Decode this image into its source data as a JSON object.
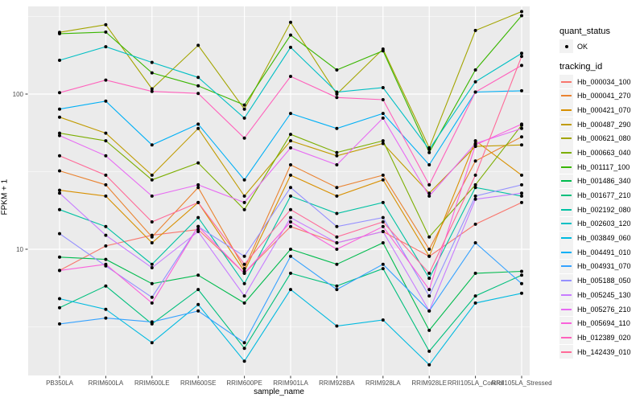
{
  "chart_data": {
    "type": "line",
    "title": "",
    "xlabel": "sample_name",
    "ylabel": "FPKM + 1",
    "yscale": "log10",
    "yticks": [
      10,
      100
    ],
    "ylim": [
      1.6,
      380
    ],
    "grid": true,
    "legend_position": "right",
    "panel_bg": "#EBEBEB",
    "grid_color": "#FFFFFF",
    "point_color": "#000000",
    "tick_label_color": "#4D4D4D",
    "categories": [
      "PB350LA",
      "RRIM600LA",
      "RRIM600LE",
      "RRIM600SE",
      "RRIM600PE",
      "RRIM901LA",
      "RRIM928BA",
      "RRIM928LA",
      "RRIM928LE",
      "RRII105LA_Control",
      "RRII105LA_Stressed"
    ],
    "series": [
      {
        "name": "Hb_000034_100",
        "color": "#F8766D",
        "values": [
          7.3,
          10.5,
          12.3,
          13.4,
          7.0,
          14.0,
          11.0,
          13.0,
          9.0,
          14.5,
          20.0
        ]
      },
      {
        "name": "Hb_000041_270",
        "color": "#EA8331",
        "values": [
          32,
          26,
          12,
          25,
          7.5,
          35,
          25,
          30,
          10,
          37,
          53
        ]
      },
      {
        "name": "Hb_000421_070",
        "color": "#D89000",
        "values": [
          24,
          22,
          11,
          20,
          7.2,
          30,
          22,
          28,
          9,
          50,
          30
        ]
      },
      {
        "name": "Hb_000487_290",
        "color": "#C09B00",
        "values": [
          71,
          56,
          30,
          60,
          22,
          50,
          40,
          48,
          23,
          46,
          47
        ]
      },
      {
        "name": "Hb_000621_080",
        "color": "#A3A500",
        "values": [
          250,
          280,
          108,
          206,
          80,
          290,
          100,
          195,
          45,
          257,
          340
        ]
      },
      {
        "name": "Hb_000663_040",
        "color": "#7CAE00",
        "values": [
          56,
          50,
          28,
          36,
          18,
          55,
          42,
          50,
          12,
          26,
          63
        ]
      },
      {
        "name": "Hb_001117_100",
        "color": "#39B600",
        "values": [
          245,
          251,
          137,
          113,
          85,
          240,
          143,
          190,
          42,
          143,
          320
        ]
      },
      {
        "name": "Hb_001486_340",
        "color": "#00BB4E",
        "values": [
          8.9,
          8.6,
          6.0,
          6.8,
          4.5,
          10,
          8,
          11,
          3,
          7,
          7.2
        ]
      },
      {
        "name": "Hb_001677_210",
        "color": "#00BF7D",
        "values": [
          4.2,
          5.8,
          3.3,
          5.5,
          2.3,
          7.0,
          5.8,
          7.5,
          2.2,
          5.0,
          6.8
        ]
      },
      {
        "name": "Hb_002192_080",
        "color": "#00C1A3",
        "values": [
          18,
          14,
          8,
          16,
          6,
          22,
          17,
          20,
          6.5,
          25,
          22
        ]
      },
      {
        "name": "Hb_002603_120",
        "color": "#00BFC4",
        "values": [
          165,
          202,
          160,
          128,
          70,
          200,
          103,
          110,
          44,
          120,
          183
        ]
      },
      {
        "name": "Hb_003849_060",
        "color": "#00BAE0",
        "values": [
          4.8,
          4.1,
          2.5,
          4.4,
          1.9,
          5.5,
          3.2,
          3.5,
          1.8,
          4.5,
          5.2
        ]
      },
      {
        "name": "Hb_004491_010",
        "color": "#00B0F6",
        "values": [
          80,
          90,
          47,
          64,
          28,
          75,
          60,
          75,
          35,
          103,
          105
        ]
      },
      {
        "name": "Hb_004931_070",
        "color": "#35A2FF",
        "values": [
          3.3,
          3.6,
          3.4,
          4.0,
          2.5,
          9.0,
          5.5,
          8.0,
          4.0,
          11.0,
          6.0
        ]
      },
      {
        "name": "Hb_005188_050",
        "color": "#9590FF",
        "values": [
          12.6,
          7.8,
          4.9,
          14,
          9,
          25,
          14,
          16,
          5,
          22,
          26
        ]
      },
      {
        "name": "Hb_005245_130",
        "color": "#C77CFF",
        "values": [
          23,
          12.3,
          7.6,
          13,
          5,
          16,
          11,
          13,
          4,
          21,
          23
        ]
      },
      {
        "name": "Hb_005276_210",
        "color": "#E76BF3",
        "values": [
          54,
          40,
          22,
          26,
          20,
          45,
          35,
          70,
          22,
          48,
          60
        ]
      },
      {
        "name": "Hb_005694_110",
        "color": "#FA62DB",
        "values": [
          7.3,
          8.0,
          4.5,
          14,
          7,
          15,
          10,
          14,
          5.5,
          47,
          64
        ]
      },
      {
        "name": "Hb_012389_020",
        "color": "#FF62BC",
        "values": [
          102,
          123,
          104,
          101,
          52,
          130,
          95,
          92,
          26,
          103,
          153
        ]
      },
      {
        "name": "Hb_142439_010",
        "color": "#FF6A98",
        "values": [
          40,
          30,
          15,
          20,
          8,
          18,
          12,
          15,
          7,
          30,
          175
        ]
      }
    ],
    "legend": {
      "quant_status": {
        "title": "quant_status",
        "items": [
          {
            "label": "OK",
            "marker": "point",
            "color": "#000000"
          }
        ]
      },
      "tracking_id": {
        "title": "tracking_id"
      }
    }
  }
}
